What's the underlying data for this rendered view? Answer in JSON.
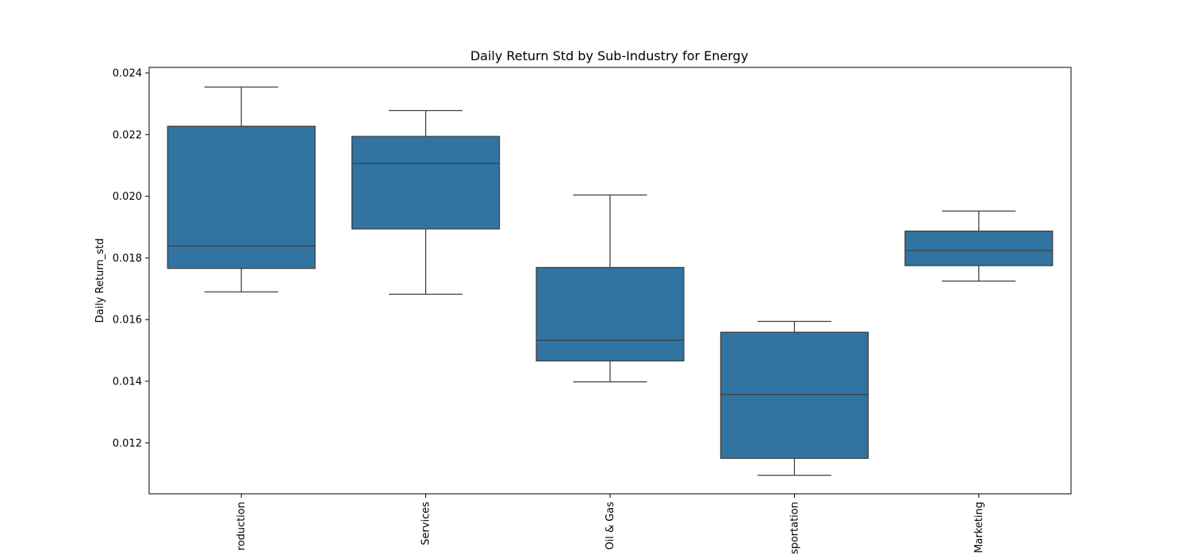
{
  "chart_data": {
    "type": "box",
    "title": "Daily Return Std by Sub-Industry for Energy",
    "xlabel": "",
    "ylabel": "Daily Return_std",
    "ylim": [
      0.01035,
      0.02418
    ],
    "yticks": [
      0.012,
      0.014,
      0.016,
      0.018,
      0.02,
      0.022,
      0.024
    ],
    "ytick_labels": [
      "0.012",
      "0.014",
      "0.016",
      "0.018",
      "0.020",
      "0.022",
      "0.024"
    ],
    "grid": false,
    "categories": [
      "roduction",
      "Services",
      "Oil & Gas",
      "sportation",
      "Marketing"
    ],
    "series": [
      {
        "values": [
          {
            "whisker_low": 0.0169,
            "q1": 0.01766,
            "median": 0.01839,
            "q3": 0.02227,
            "whisker_high": 0.02354
          },
          {
            "whisker_low": 0.01682,
            "q1": 0.01894,
            "median": 0.02106,
            "q3": 0.02194,
            "whisker_high": 0.02278
          },
          {
            "whisker_low": 0.01398,
            "q1": 0.01466,
            "median": 0.01533,
            "q3": 0.01769,
            "whisker_high": 0.02004
          },
          {
            "whisker_low": 0.01095,
            "q1": 0.0115,
            "median": 0.01357,
            "q3": 0.01559,
            "whisker_high": 0.01594
          },
          {
            "whisker_low": 0.01725,
            "q1": 0.01775,
            "median": 0.01824,
            "q3": 0.01887,
            "whisker_high": 0.01952
          }
        ]
      }
    ],
    "colors": {
      "box_fill": "#3274a1",
      "line": "#3f3f3f",
      "axes": "#000000"
    }
  }
}
